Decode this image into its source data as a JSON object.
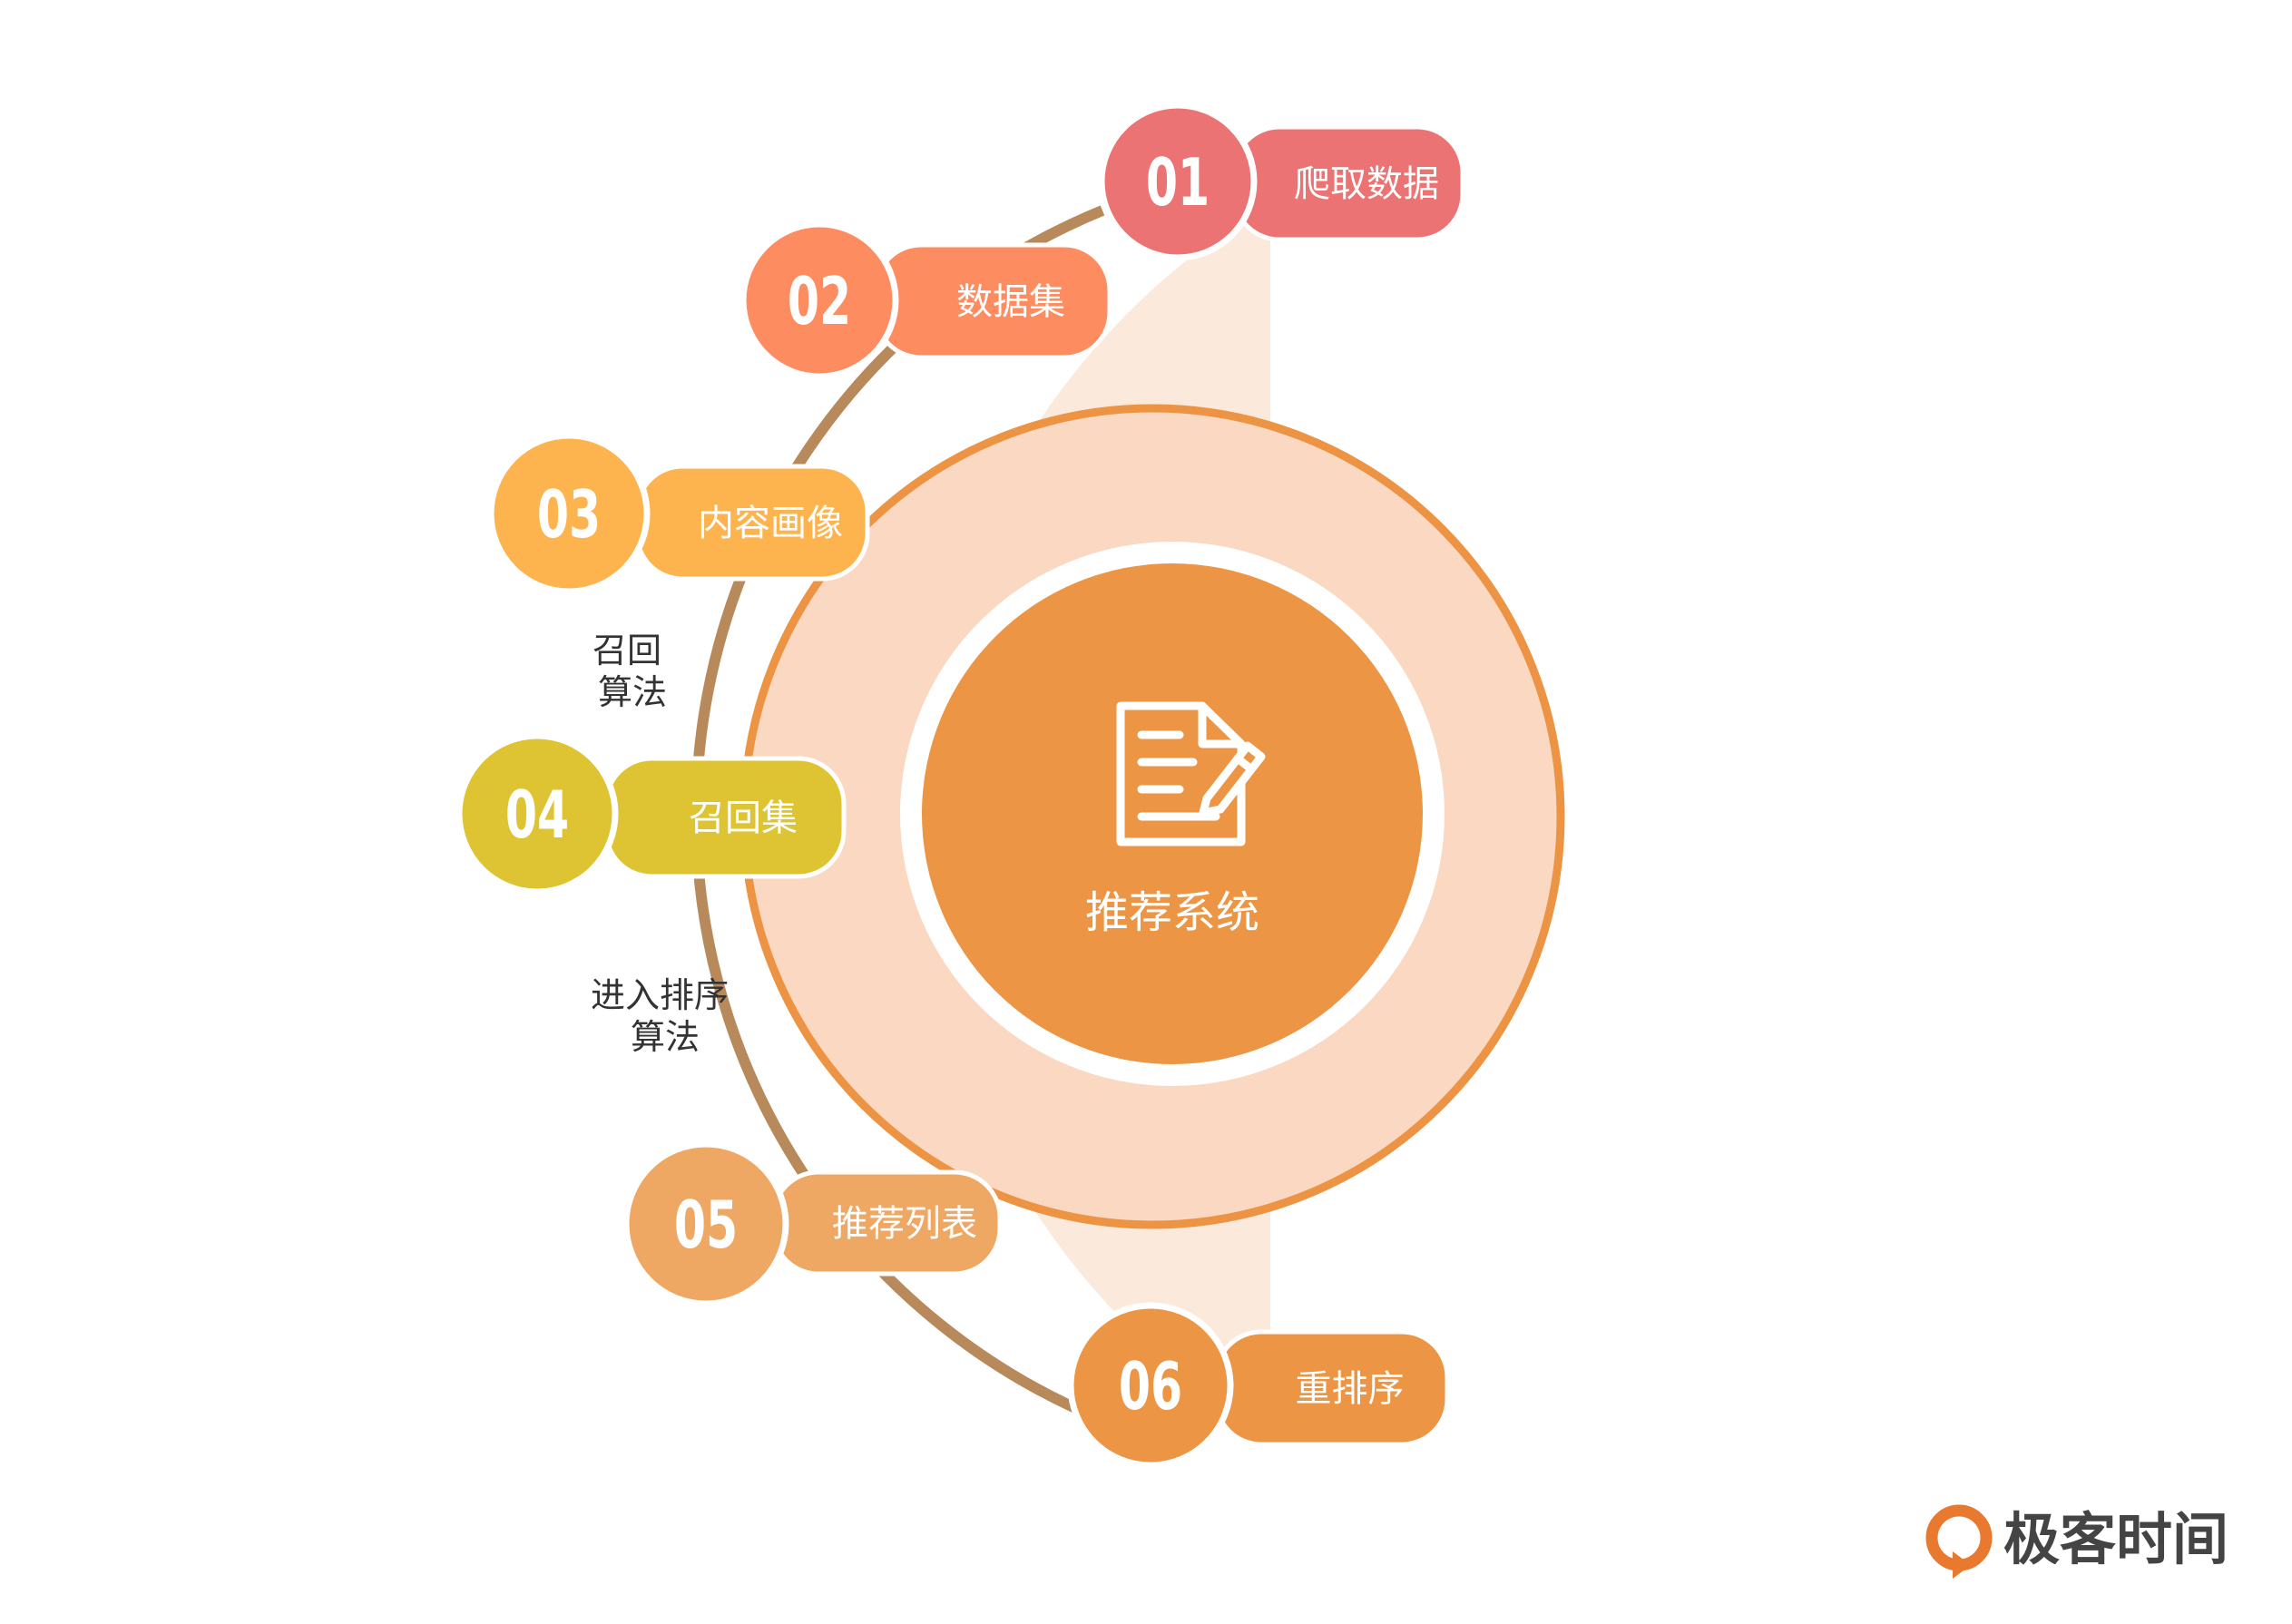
{
  "center": {
    "label": "推荐系统",
    "icon": "document-edit-icon"
  },
  "steps": [
    {
      "num": "01",
      "label": "爬取数据",
      "color": "#EC7373"
    },
    {
      "num": "02",
      "label": "数据集",
      "color": "#FD8C60"
    },
    {
      "num": "03",
      "label": "内容画像",
      "color": "#FDB44E"
    },
    {
      "num": "04",
      "label": "召回集",
      "color": "#DEC432"
    },
    {
      "num": "05",
      "label": "推荐列表",
      "color": "#EFA764"
    },
    {
      "num": "06",
      "label": "重排序",
      "color": "#EC9544"
    }
  ],
  "annotations": [
    {
      "lines": [
        "召回",
        "算法"
      ]
    },
    {
      "lines": [
        "进入排序",
        "算法"
      ]
    }
  ],
  "logo": {
    "text": "极客时间"
  },
  "colors": {
    "arc": "#B8895A",
    "band": "#FBEADB",
    "outer_ring": "#EC9444",
    "ring_fill": "#FAD8C1",
    "core": "#EC9544",
    "logo": "#E8792F",
    "logo_text": "#444444"
  }
}
